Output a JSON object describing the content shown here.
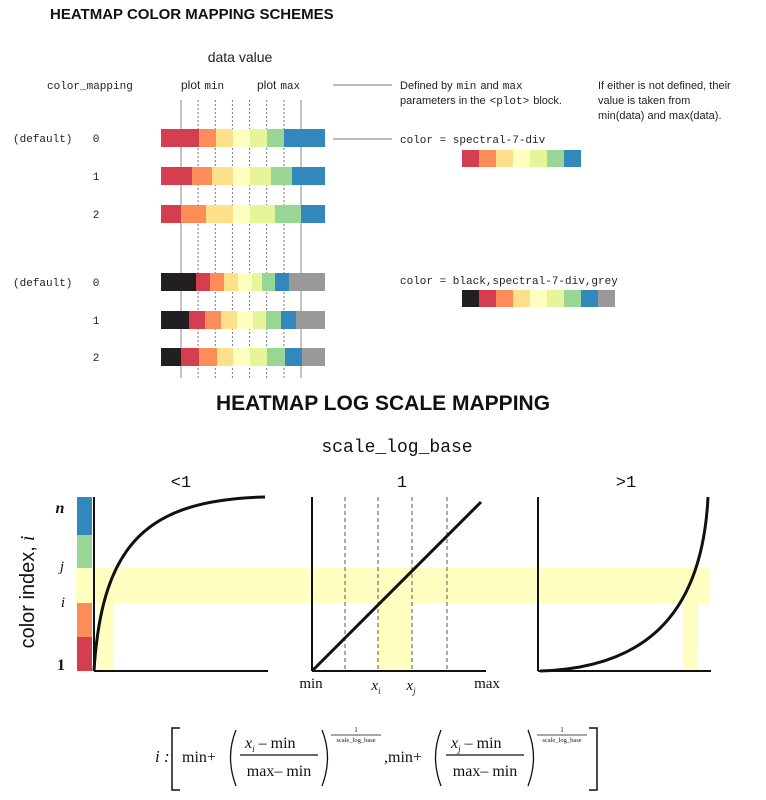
{
  "top": {
    "title": "HEATMAP COLOR MAPPING SCHEMES",
    "data_value_label": "data value",
    "color_mapping_label": "color_mapping",
    "plot_min": {
      "word": "plot",
      "code": "min"
    },
    "plot_max": {
      "word": "plot",
      "code": "max"
    },
    "note_defined": {
      "line1_pre": "Defined by",
      "line1_code1": "min",
      "line1_mid": "and",
      "line1_code2": "max",
      "line2_pre": "parameters in the",
      "line2_code": "<plot>",
      "line2_post": "block."
    },
    "note_either": [
      "If either is not defined, their",
      "value is taken from",
      "min(data) and max(data)."
    ],
    "default_label": "(default)",
    "group1": {
      "rows": [
        {
          "mode": "0",
          "default": true
        },
        {
          "mode": "1",
          "default": false
        },
        {
          "mode": "2",
          "default": false
        }
      ],
      "color_label": "color = spectral-7-div"
    },
    "group2": {
      "rows": [
        {
          "mode": "0",
          "default": true
        },
        {
          "mode": "1",
          "default": false
        },
        {
          "mode": "2",
          "default": false
        }
      ],
      "color_label": "color = black,spectral-7-div,grey"
    }
  },
  "palettes": {
    "spectral7": [
      "#d53e4f",
      "#fc8d59",
      "#fee08b",
      "#ffffbf",
      "#e6f598",
      "#99d594",
      "#3288bd"
    ],
    "extended": [
      "#231f20",
      "#d53e4f",
      "#fc8d59",
      "#fee08b",
      "#ffffbf",
      "#e6f598",
      "#99d594",
      "#3288bd",
      "#999999"
    ]
  },
  "bottom": {
    "title": "HEATMAP LOG SCALE MAPPING",
    "scale_label": "scale_log_base",
    "panel_labels": [
      "<1",
      "1",
      ">1"
    ],
    "y_axis_label": "color index,",
    "y_axis_var": "i",
    "y_ticks": {
      "n": "n",
      "j": "j",
      "i": "i",
      "one": "1"
    },
    "x_min": "min",
    "x_max": "max",
    "x_i": "x",
    "x_i_sub": "i",
    "x_j": "x",
    "x_j_sub": "j",
    "highlight_color": "#ffffc2",
    "formula": {
      "lead": "i :",
      "min_plus": "min+",
      "num_i": "x",
      "num_i_sub": "i",
      "num_rest": "– min",
      "den": "max– min",
      "exp_num": "1",
      "exp_den": "scale_log_base",
      "sep": ",min+",
      "num_j": "x",
      "num_j_sub": "j"
    }
  }
}
